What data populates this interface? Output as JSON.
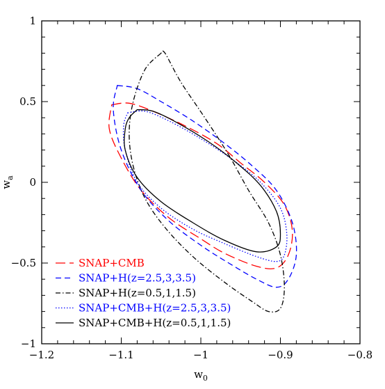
{
  "chart_data": {
    "type": "line",
    "xlabel": "w",
    "xlabel_sub": "0",
    "ylabel": "w",
    "ylabel_sub": "a",
    "xlim": [
      -1.2,
      -0.8
    ],
    "ylim": [
      -1,
      1
    ],
    "x_ticks": [
      -1.2,
      -1.1,
      -1,
      -0.9,
      -0.8
    ],
    "x_tick_labels": [
      "−1.2",
      "−1.1",
      "−1",
      "−0.9",
      "−0.8"
    ],
    "y_ticks": [
      -1,
      -0.5,
      0,
      0.5,
      1
    ],
    "y_tick_labels": [
      "−1",
      "−0.5",
      "0",
      "0.5",
      "1"
    ],
    "grid": false,
    "legend_position": "bottom-left",
    "series": [
      {
        "name": "SNAP+CMB",
        "color": "#ff0000",
        "style": "long-dash",
        "shape": "ellipse",
        "points": [
          [
            -1.112,
            0.48
          ],
          [
            -1.09,
            0.49
          ],
          [
            -1.06,
            0.44
          ],
          [
            -1.02,
            0.35
          ],
          [
            -0.98,
            0.24
          ],
          [
            -0.95,
            0.12
          ],
          [
            -0.92,
            0.0
          ],
          [
            -0.895,
            -0.14
          ],
          [
            -0.885,
            -0.3
          ],
          [
            -0.89,
            -0.45
          ],
          [
            -0.905,
            -0.53
          ],
          [
            -0.93,
            -0.52
          ],
          [
            -0.97,
            -0.44
          ],
          [
            -1.0,
            -0.35
          ],
          [
            -1.04,
            -0.22
          ],
          [
            -1.075,
            -0.05
          ],
          [
            -1.1,
            0.15
          ],
          [
            -1.115,
            0.33
          ],
          [
            -1.112,
            0.48
          ]
        ]
      },
      {
        "name": "SNAP+H(z=2.5,3,3.5)",
        "color": "#0000ff",
        "style": "short-dash",
        "shape": "ellipse",
        "points": [
          [
            -1.105,
            0.6
          ],
          [
            -1.08,
            0.58
          ],
          [
            -1.05,
            0.5
          ],
          [
            -1.01,
            0.38
          ],
          [
            -0.97,
            0.24
          ],
          [
            -0.935,
            0.1
          ],
          [
            -0.905,
            -0.05
          ],
          [
            -0.885,
            -0.25
          ],
          [
            -0.88,
            -0.45
          ],
          [
            -0.89,
            -0.6
          ],
          [
            -0.905,
            -0.65
          ],
          [
            -0.93,
            -0.6
          ],
          [
            -0.965,
            -0.5
          ],
          [
            -1.0,
            -0.39
          ],
          [
            -1.04,
            -0.24
          ],
          [
            -1.075,
            -0.05
          ],
          [
            -1.1,
            0.2
          ],
          [
            -1.11,
            0.45
          ],
          [
            -1.105,
            0.6
          ]
        ]
      },
      {
        "name": "SNAP+H(z=0.5,1,1.5)",
        "color": "#000000",
        "style": "dash-dot",
        "shape": "ellipse",
        "points": [
          [
            -1.05,
            0.8
          ],
          [
            -1.07,
            0.7
          ],
          [
            -1.085,
            0.5
          ],
          [
            -1.09,
            0.3
          ],
          [
            -1.085,
            0.1
          ],
          [
            -1.07,
            -0.1
          ],
          [
            -1.045,
            -0.28
          ],
          [
            -1.01,
            -0.46
          ],
          [
            -0.97,
            -0.62
          ],
          [
            -0.935,
            -0.74
          ],
          [
            -0.915,
            -0.8
          ],
          [
            -0.9,
            -0.78
          ],
          [
            -0.895,
            -0.65
          ],
          [
            -0.9,
            -0.45
          ],
          [
            -0.915,
            -0.25
          ],
          [
            -0.94,
            -0.05
          ],
          [
            -0.965,
            0.17
          ],
          [
            -0.995,
            0.4
          ],
          [
            -1.025,
            0.62
          ],
          [
            -1.045,
            0.8
          ],
          [
            -1.05,
            0.8
          ]
        ]
      },
      {
        "name": "SNAP+CMB+H(z=2.5,3,3.5)",
        "color": "#0000ff",
        "style": "dotted",
        "shape": "ellipse",
        "points": [
          [
            -1.092,
            0.43
          ],
          [
            -1.07,
            0.44
          ],
          [
            -1.04,
            0.38
          ],
          [
            -1.0,
            0.27
          ],
          [
            -0.96,
            0.14
          ],
          [
            -0.925,
            0.0
          ],
          [
            -0.9,
            -0.16
          ],
          [
            -0.892,
            -0.32
          ],
          [
            -0.895,
            -0.45
          ],
          [
            -0.905,
            -0.49
          ],
          [
            -0.93,
            -0.46
          ],
          [
            -0.97,
            -0.38
          ],
          [
            -1.01,
            -0.29
          ],
          [
            -1.05,
            -0.16
          ],
          [
            -1.08,
            0.0
          ],
          [
            -1.095,
            0.2
          ],
          [
            -1.097,
            0.35
          ],
          [
            -1.092,
            0.43
          ]
        ]
      },
      {
        "name": "SNAP+CMB+H(z=0.5,1,1.5)",
        "color": "#000000",
        "style": "solid",
        "shape": "ellipse",
        "points": [
          [
            -1.08,
            0.45
          ],
          [
            -1.06,
            0.44
          ],
          [
            -1.03,
            0.37
          ],
          [
            -0.99,
            0.25
          ],
          [
            -0.955,
            0.12
          ],
          [
            -0.925,
            -0.02
          ],
          [
            -0.905,
            -0.18
          ],
          [
            -0.9,
            -0.32
          ],
          [
            -0.905,
            -0.4
          ],
          [
            -0.93,
            -0.43
          ],
          [
            -0.97,
            -0.36
          ],
          [
            -1.01,
            -0.25
          ],
          [
            -1.05,
            -0.12
          ],
          [
            -1.08,
            0.03
          ],
          [
            -1.095,
            0.2
          ],
          [
            -1.095,
            0.33
          ],
          [
            -1.09,
            0.4
          ],
          [
            -1.08,
            0.45
          ]
        ]
      }
    ]
  }
}
